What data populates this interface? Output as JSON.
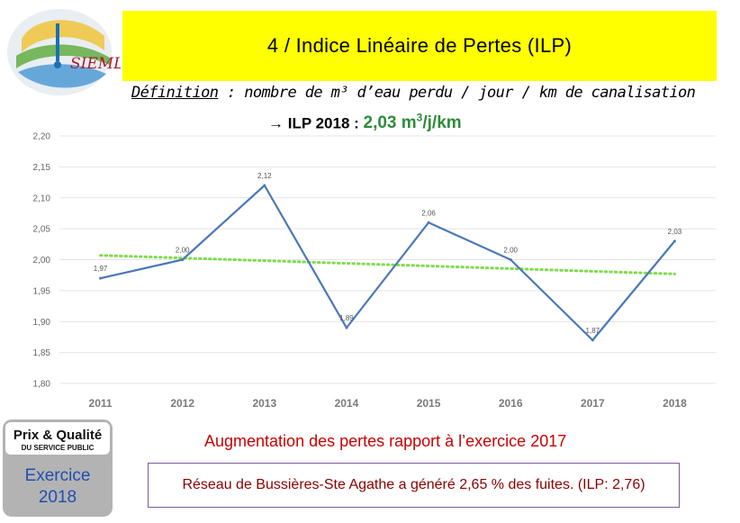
{
  "logo": {
    "text": "SIEMLY"
  },
  "header": {
    "title": "4 / Indice Linéaire de Pertes (ILP)"
  },
  "definition": {
    "label": "Définition",
    "text": " : nombre de m³ d’eau perdu / jour / km de canalisation"
  },
  "ilp": {
    "prefix": "→ ILP 2018 : ",
    "value": "2,03 m",
    "unit_sup": "3",
    "unit_end": "/j/km"
  },
  "badge": {
    "line1": "Prix & Qualité",
    "line2": "DU SERVICE PUBLIC",
    "line3": "Exercice",
    "line4": "2018"
  },
  "augmentation": "Augmentation des pertes rapport à l’exercice 2017",
  "note": "Réseau de Bussières-Ste Agathe a généré 2,65 % des fuites. (ILP: 2,76)",
  "chart_data": {
    "type": "line",
    "categories": [
      "2011",
      "2012",
      "2013",
      "2014",
      "2015",
      "2016",
      "2017",
      "2018"
    ],
    "series": [
      {
        "values": [
          1.97,
          2.0,
          2.12,
          1.89,
          2.06,
          2.0,
          1.87,
          2.03
        ],
        "color": "#4a78b8"
      }
    ],
    "data_labels": [
      "1,97",
      "2,00",
      "2,12",
      "1,89",
      "2,06",
      "2,00",
      "1,87",
      "2,03"
    ],
    "trendline": {
      "style": "dotted",
      "color": "#7fdc4c",
      "from": 2.007,
      "to": 1.977
    },
    "yticks": [
      "2,20",
      "2,15",
      "2,10",
      "2,05",
      "2,00",
      "1,95",
      "1,90",
      "1,85",
      "1,80"
    ],
    "ylim": [
      1.8,
      2.2
    ],
    "grid": true
  },
  "colors": {
    "title_bg": "#ffff00",
    "ilp_green": "#2e8b3a",
    "aug_red": "#cc0000",
    "note_red": "#8b0000"
  }
}
